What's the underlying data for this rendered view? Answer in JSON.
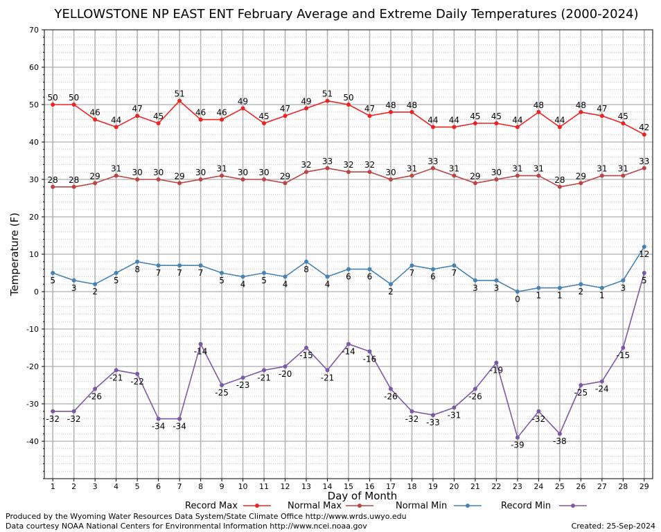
{
  "chart_data": {
    "type": "line",
    "title": "YELLOWSTONE NP EAST ENT February Average and Extreme Daily Temperatures (2000-2024)",
    "xlabel": "Day of Month",
    "ylabel": "Temperature (F)",
    "ylim": [
      -50,
      70
    ],
    "yticks": [
      -40,
      -30,
      -20,
      -10,
      0,
      10,
      20,
      30,
      40,
      50,
      60,
      70
    ],
    "xlim": [
      0.6,
      29.4
    ],
    "categories": [
      1,
      2,
      3,
      4,
      5,
      6,
      7,
      8,
      9,
      10,
      11,
      12,
      13,
      14,
      15,
      16,
      17,
      18,
      19,
      20,
      21,
      22,
      23,
      24,
      25,
      26,
      27,
      28,
      29
    ],
    "grid": true,
    "legend_position": "bottom",
    "series": [
      {
        "name": "Record Max",
        "color": "#ee2222",
        "label_pos": "above",
        "values": [
          50,
          50,
          46,
          44,
          47,
          45,
          51,
          46,
          46,
          49,
          45,
          47,
          49,
          51,
          50,
          47,
          48,
          48,
          44,
          44,
          45,
          45,
          44,
          48,
          44,
          48,
          47,
          45,
          42
        ]
      },
      {
        "name": "Normal Max",
        "color": "#bb4444",
        "label_pos": "above",
        "values": [
          28,
          28,
          29,
          31,
          30,
          30,
          29,
          30,
          31,
          30,
          30,
          29,
          32,
          33,
          32,
          32,
          30,
          31,
          33,
          31,
          29,
          30,
          31,
          31,
          28,
          29,
          31,
          31,
          33
        ]
      },
      {
        "name": "Normal Min",
        "color": "#4682b4",
        "label_pos": "below",
        "values": [
          5,
          3,
          2,
          5,
          8,
          7,
          7,
          7,
          5,
          4,
          5,
          4,
          8,
          4,
          6,
          6,
          2,
          7,
          6,
          7,
          3,
          3,
          0,
          1,
          1,
          2,
          1,
          3,
          12
        ]
      },
      {
        "name": "Record Min",
        "color": "#7b58a6",
        "label_pos": "below",
        "values": [
          -32,
          -32,
          -26,
          -21,
          -22,
          -34,
          -34,
          -14,
          -25,
          -23,
          -21,
          -20,
          -15,
          -21,
          -14,
          -16,
          -26,
          -32,
          -33,
          -31,
          -26,
          -19,
          -39,
          -32,
          -38,
          -25,
          -24,
          -15,
          5
        ]
      }
    ]
  },
  "footer": {
    "credit1": "Produced by the Wyoming Water Resources Data System/State Climate Office http://www.wrds.uwyo.edu",
    "credit2": "Data courtesy NOAA National Centers for Environmental Information http://www.ncei.noaa.gov",
    "created": "Created:  25-Sep-2024"
  }
}
